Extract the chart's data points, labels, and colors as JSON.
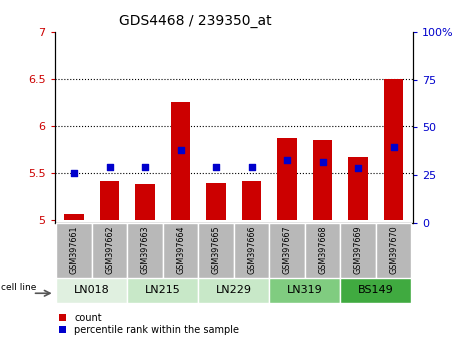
{
  "title": "GDS4468 / 239350_at",
  "samples": [
    "GSM397661",
    "GSM397662",
    "GSM397663",
    "GSM397664",
    "GSM397665",
    "GSM397666",
    "GSM397667",
    "GSM397668",
    "GSM397669",
    "GSM397670"
  ],
  "cell_line_groups": [
    "LN018",
    "LN215",
    "LN229",
    "LN319",
    "BS149"
  ],
  "cell_line_spans": [
    [
      0,
      1
    ],
    [
      2,
      3
    ],
    [
      4,
      5
    ],
    [
      6,
      7
    ],
    [
      8,
      9
    ]
  ],
  "count_values": [
    5.07,
    5.42,
    5.38,
    6.25,
    5.4,
    5.42,
    5.87,
    5.85,
    5.67,
    6.5
  ],
  "percentile_values": [
    5.5,
    5.57,
    5.57,
    5.75,
    5.56,
    5.57,
    5.64,
    5.62,
    5.55,
    5.78
  ],
  "ylim_left": [
    4.97,
    7.0
  ],
  "ylim_right": [
    0,
    100
  ],
  "yticks_left": [
    5.0,
    5.5,
    6.0,
    6.5,
    7.0
  ],
  "ytick_labels_left": [
    "5",
    "5.5",
    "6",
    "6.5",
    "7"
  ],
  "yticks_right": [
    0,
    25,
    50,
    75,
    100
  ],
  "ytick_labels_right": [
    "0",
    "25",
    "50",
    "75",
    "100%"
  ],
  "bar_bottom": 5.0,
  "bar_color": "#cc0000",
  "dot_color": "#0000cc",
  "dot_size": 25,
  "grid_yticks": [
    5.5,
    6.0,
    6.5
  ],
  "bar_width": 0.55,
  "legend_count_label": "count",
  "legend_pct_label": "percentile rank within the sample",
  "tick_label_color_left": "#cc0000",
  "tick_label_color_right": "#0000cc",
  "group_colors": [
    "#e0f0e0",
    "#c8e8c8",
    "#c8e8c8",
    "#80cc80",
    "#40aa40"
  ],
  "label_box_color": "#b8b8b8",
  "cell_line_label_text": "cell line"
}
